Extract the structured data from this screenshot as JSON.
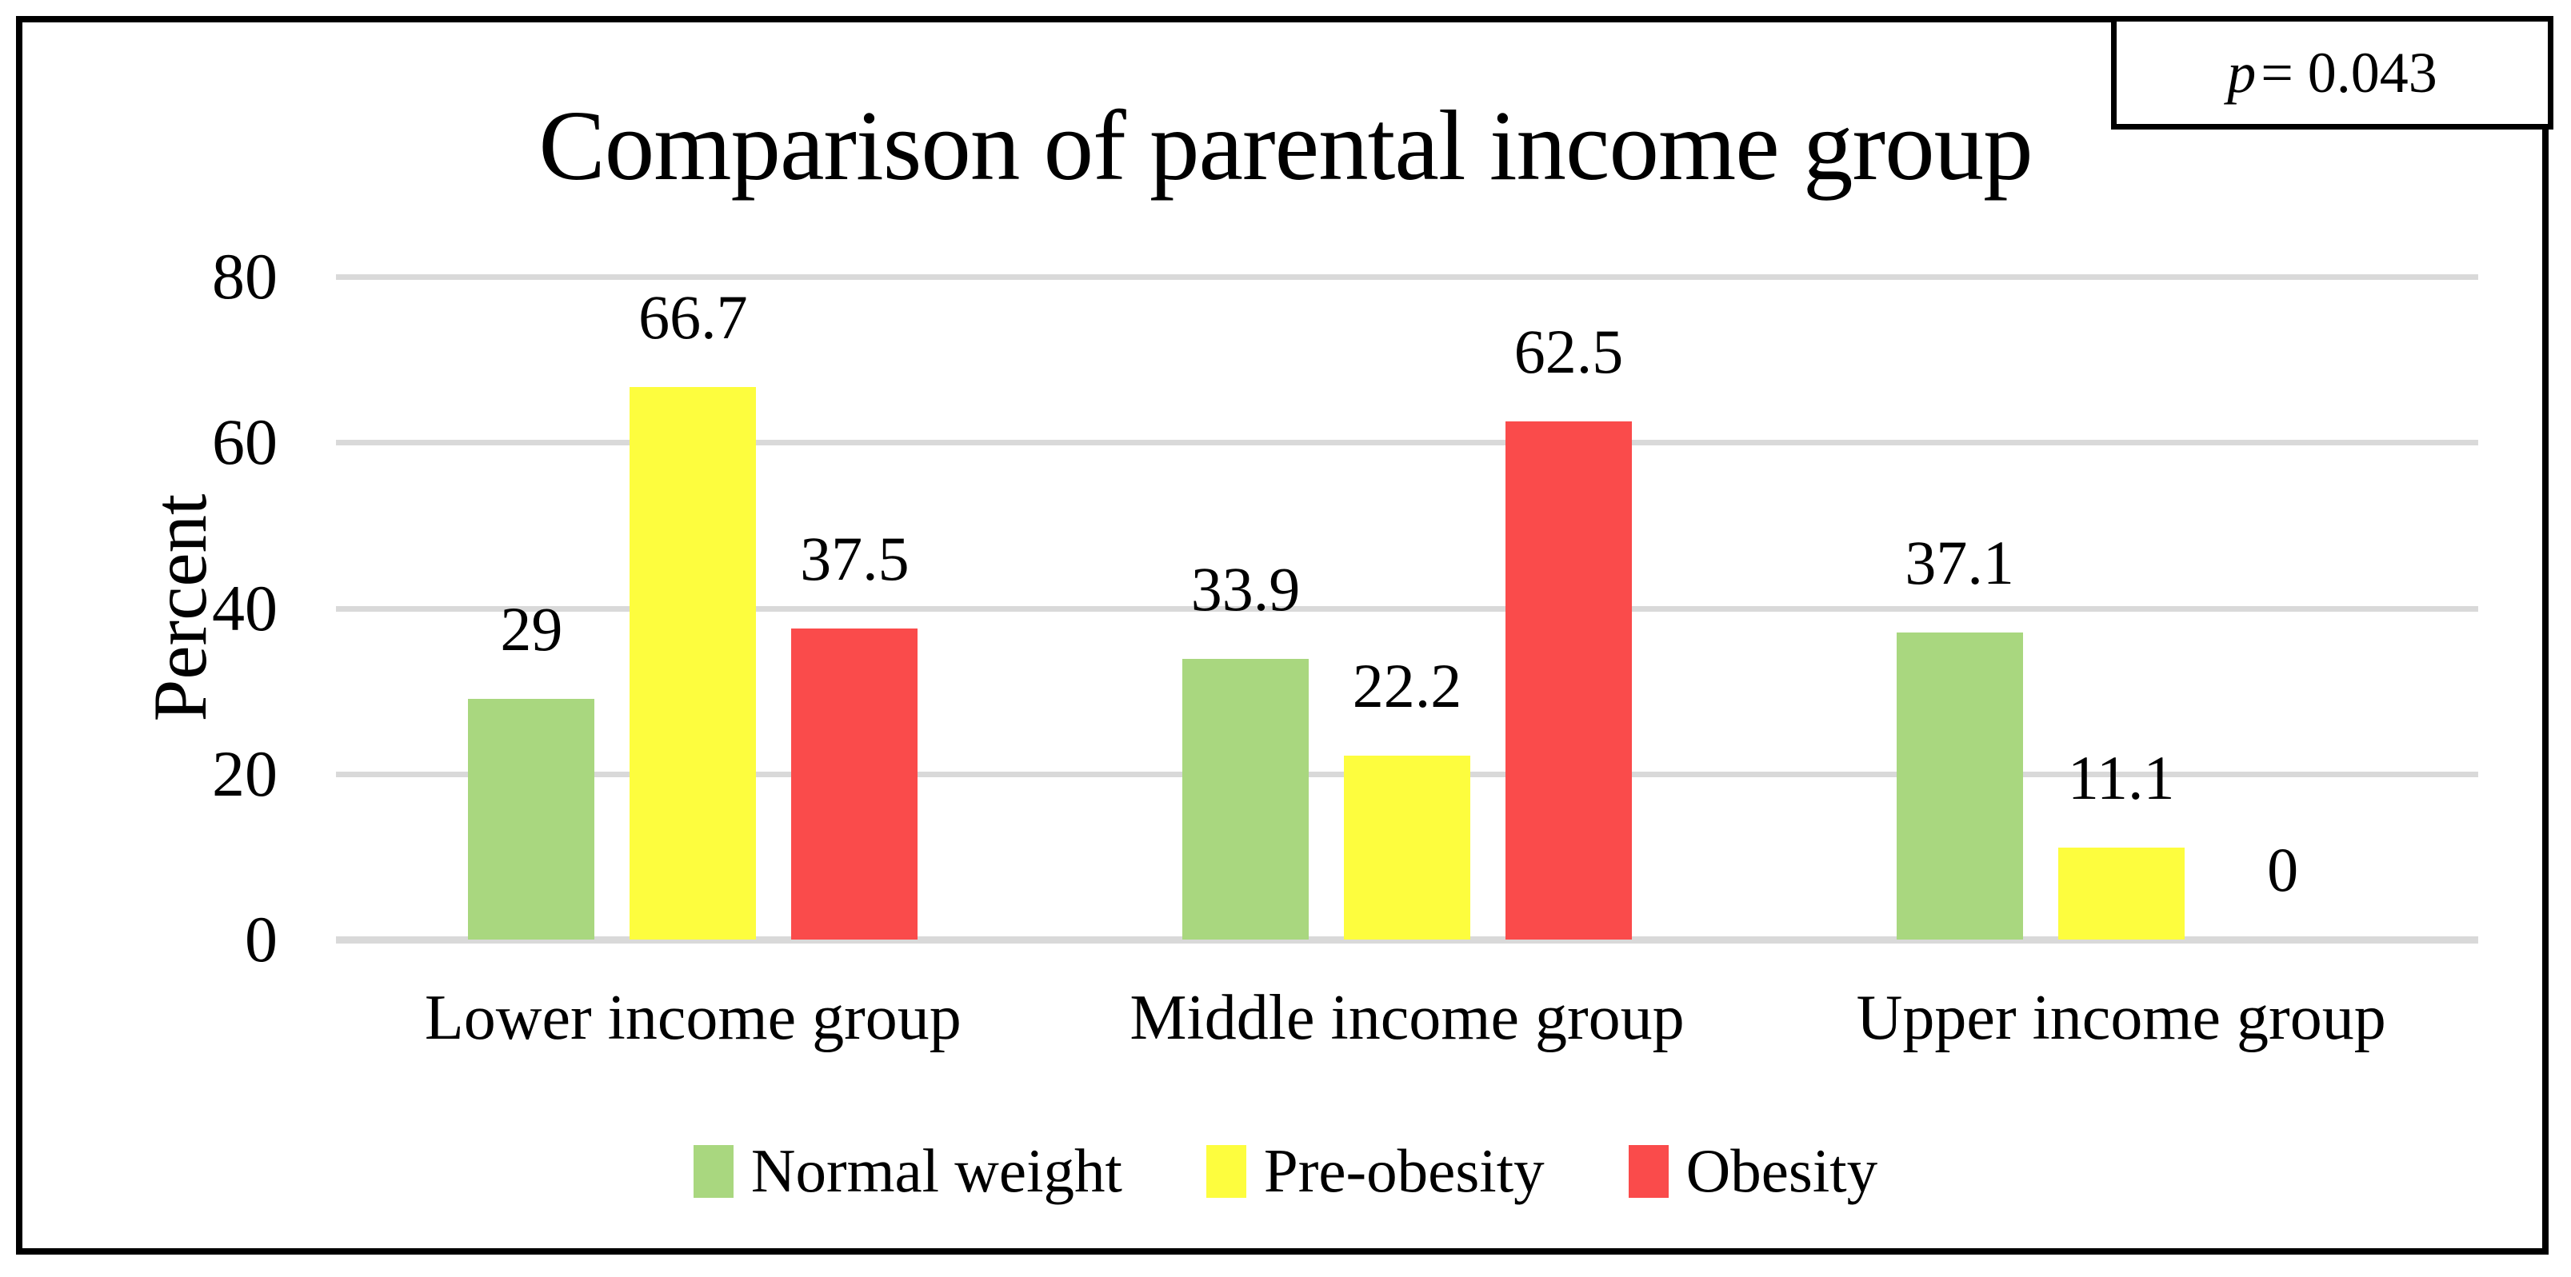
{
  "p_box": {
    "symbol": "p",
    "rest": "= 0.043"
  },
  "colors": {
    "frame": "#000000",
    "background": "#FFFFFF",
    "gridline": "#D9D9D9",
    "normal_weight": "#A9D77F",
    "pre_obesity": "#FDFD3E",
    "obesity": "#FA4B4B"
  },
  "chart_data": {
    "type": "bar",
    "title": "Comparison of parental income group",
    "xlabel": "",
    "ylabel": "Percent",
    "ylim": [
      0,
      80
    ],
    "yticks": [
      0,
      20,
      40,
      60,
      80
    ],
    "grid": true,
    "legend_position": "bottom",
    "annotation": "p = 0.043",
    "categories": [
      "Lower income group",
      "Middle income group",
      "Upper income group"
    ],
    "series": [
      {
        "name": "Normal weight",
        "color": "#A9D77F",
        "values": [
          29,
          33.9,
          37.1
        ],
        "labels": [
          "29",
          "33.9",
          "37.1"
        ]
      },
      {
        "name": "Pre-obesity",
        "color": "#FDFD3E",
        "values": [
          66.7,
          22.2,
          11.1
        ],
        "labels": [
          "66.7",
          "22.2",
          "11.1"
        ]
      },
      {
        "name": "Obesity",
        "color": "#FA4B4B",
        "values": [
          37.5,
          62.5,
          0
        ],
        "labels": [
          "37.5",
          "62.5",
          "0"
        ]
      }
    ]
  }
}
